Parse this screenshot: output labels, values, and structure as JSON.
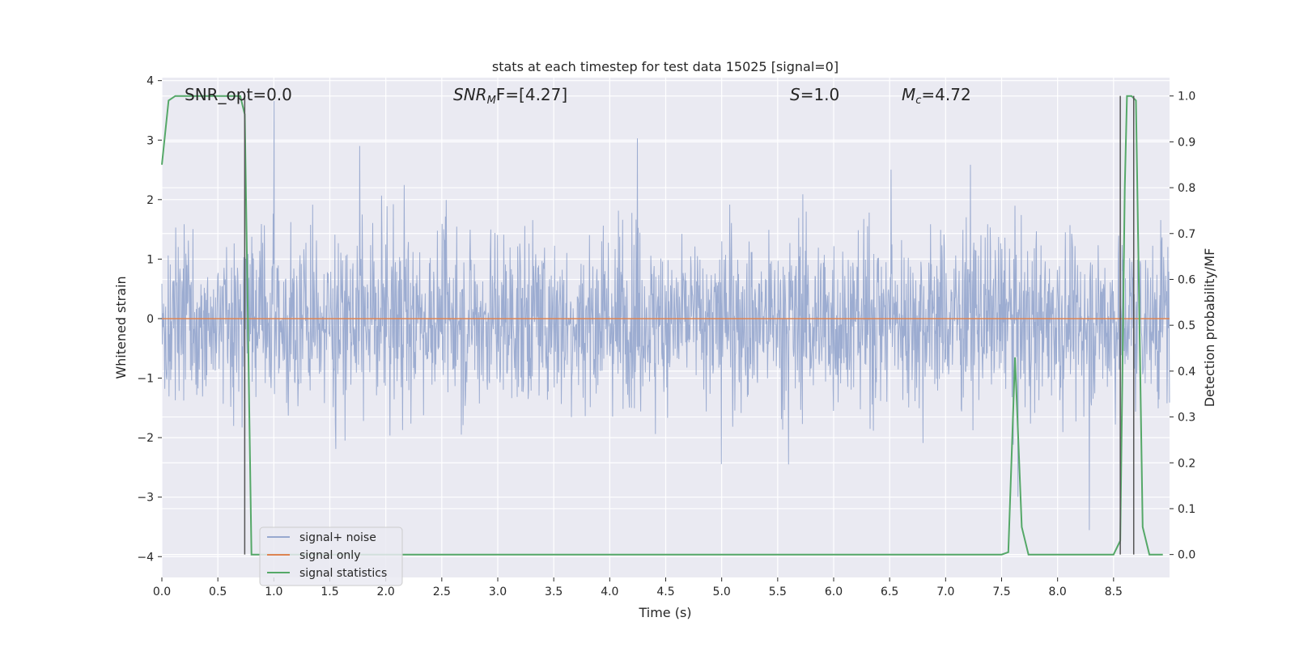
{
  "chart_data": {
    "type": "line",
    "title": "stats at each timestep for test data 15025 [signal=0]",
    "xlabel": "Time (s)",
    "ylabel_left": "Whitened strain",
    "ylabel_right": "Detection probability/MF",
    "xlim": [
      0.0,
      9.0
    ],
    "ylim_left": [
      -4.35,
      4.05
    ],
    "ylim_right": [
      -0.05,
      1.04
    ],
    "x_ticks": [
      "0.0",
      "0.5",
      "1.0",
      "1.5",
      "2.0",
      "2.5",
      "3.0",
      "3.5",
      "4.0",
      "4.5",
      "5.0",
      "5.5",
      "6.0",
      "6.5",
      "7.0",
      "7.5",
      "8.0",
      "8.5"
    ],
    "x_tick_values": [
      0.0,
      0.5,
      1.0,
      1.5,
      2.0,
      2.5,
      3.0,
      3.5,
      4.0,
      4.5,
      5.0,
      5.5,
      6.0,
      6.5,
      7.0,
      7.5,
      8.0,
      8.5
    ],
    "y_left_ticks": [
      "−4",
      "−3",
      "−2",
      "−1",
      "0",
      "1",
      "2",
      "3",
      "4"
    ],
    "y_left_tick_values": [
      -4,
      -3,
      -2,
      -1,
      0,
      1,
      2,
      3,
      4
    ],
    "y_right_ticks": [
      "0.0",
      "0.1",
      "0.2",
      "0.3",
      "0.4",
      "0.5",
      "0.6",
      "0.7",
      "0.8",
      "0.9",
      "1.0"
    ],
    "y_right_tick_values": [
      0.0,
      0.1,
      0.2,
      0.3,
      0.4,
      0.5,
      0.6,
      0.7,
      0.8,
      0.9,
      1.0
    ],
    "grid": true,
    "legend_placement": "lower-left",
    "annotations": {
      "snr_opt": "SNR_opt=0.0",
      "snr_mf_prefix": "SNR",
      "snr_mf_sub": "M",
      "snr_mf_suffix": "F=[4.27]",
      "s_prefix": "S",
      "s_suffix": "=1.0",
      "mc_prefix": "M",
      "mc_sub": "c",
      "mc_suffix": "=4.72"
    },
    "series": [
      {
        "name": "signal+ noise",
        "color": "#98a9cf",
        "axis": "left",
        "kind": "noise",
        "envelope_max": 3.7,
        "envelope_min": -3.65
      },
      {
        "name": "signal only",
        "color": "#dd8452",
        "axis": "left",
        "x": [
          0.0,
          9.0
        ],
        "y": [
          0.0,
          0.0
        ]
      },
      {
        "name": "signal statistics",
        "color": "#55a868",
        "axis": "right",
        "x": [
          0.0,
          0.06,
          0.12,
          0.18,
          0.24,
          0.3,
          0.36,
          0.42,
          0.48,
          0.54,
          0.6,
          0.66,
          0.7,
          0.74,
          0.8,
          0.86,
          1.0,
          2.0,
          3.0,
          4.0,
          5.0,
          6.0,
          7.0,
          7.5,
          7.56,
          7.62,
          7.68,
          7.74,
          7.8,
          8.0,
          8.4,
          8.5,
          8.56,
          8.6,
          8.62,
          8.66,
          8.7,
          8.76,
          8.82,
          8.88,
          8.94
        ],
        "y": [
          0.85,
          0.99,
          1.0,
          1.0,
          1.0,
          1.0,
          1.0,
          1.0,
          1.0,
          1.0,
          1.0,
          1.0,
          1.0,
          0.96,
          0.0,
          0.0,
          0.0,
          0.0,
          0.0,
          0.0,
          0.0,
          0.0,
          0.0,
          0.0,
          0.005,
          0.43,
          0.06,
          0.0,
          0.0,
          0.0,
          0.0,
          0.0,
          0.03,
          0.8,
          1.0,
          1.0,
          0.99,
          0.06,
          0.0,
          0.0,
          0.0
        ]
      }
    ],
    "vertical_lines": [
      0.74,
      8.56,
      8.68
    ]
  }
}
